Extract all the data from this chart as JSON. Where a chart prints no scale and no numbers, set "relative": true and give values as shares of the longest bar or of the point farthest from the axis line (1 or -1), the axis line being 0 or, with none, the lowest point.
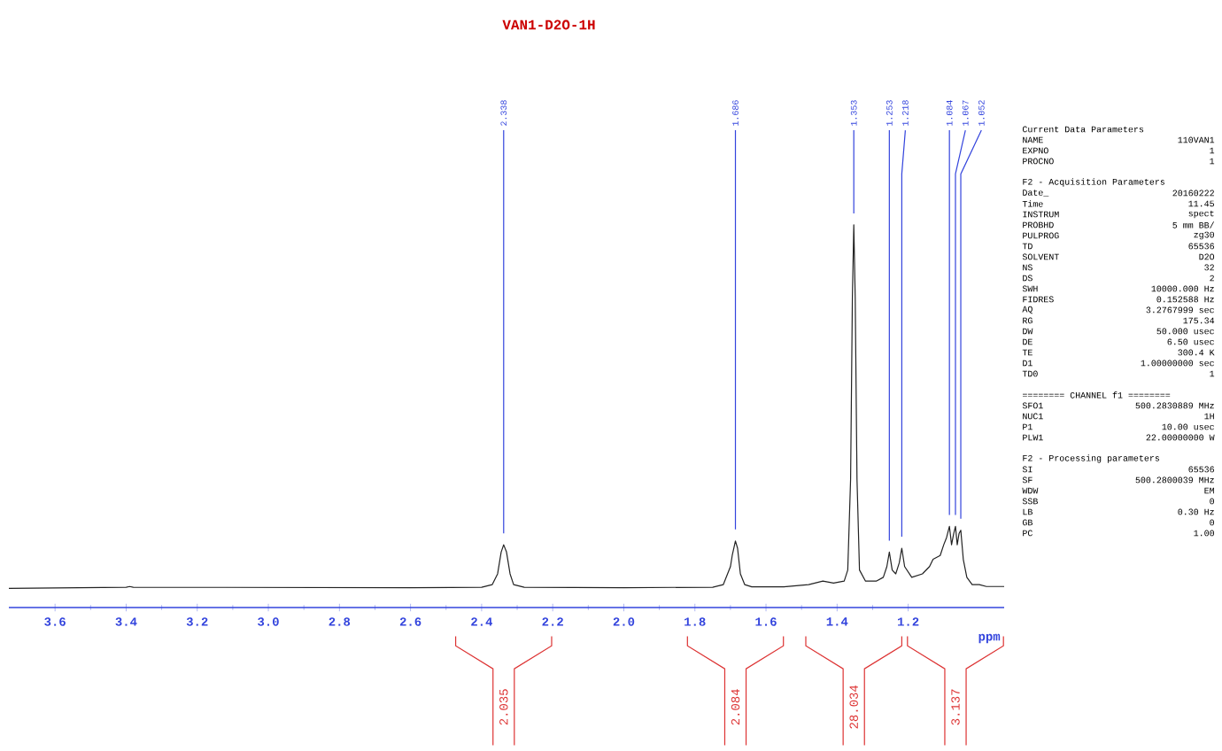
{
  "chart_data": {
    "type": "line",
    "title": "VAN1-D2O-1H",
    "xlabel": "ppm",
    "relative": true,
    "color": "#222222",
    "xlim": [
      3.73,
      0.93
    ],
    "xticks": [
      3.6,
      3.4,
      3.2,
      {
        "value": 3.0,
        "label": "3.0"
      },
      2.8,
      2.6,
      2.4,
      2.2,
      {
        "value": 2.0,
        "label": "2.0"
      },
      1.8,
      1.6,
      1.4,
      1.2
    ],
    "x": [
      3.73,
      3.4,
      3.39,
      3.38,
      2.6,
      2.4,
      2.37,
      2.355,
      2.345,
      2.338,
      2.33,
      2.32,
      2.31,
      2.28,
      2.0,
      1.75,
      1.72,
      1.7,
      1.695,
      1.686,
      1.68,
      1.672,
      1.66,
      1.64,
      1.55,
      1.48,
      1.44,
      1.41,
      1.38,
      1.37,
      1.362,
      1.357,
      1.353,
      1.349,
      1.344,
      1.337,
      1.32,
      1.29,
      1.27,
      1.26,
      1.253,
      1.245,
      1.235,
      1.225,
      1.218,
      1.21,
      1.19,
      1.16,
      1.14,
      1.13,
      1.11,
      1.1,
      1.092,
      1.084,
      1.078,
      1.072,
      1.067,
      1.062,
      1.057,
      1.052,
      1.045,
      1.035,
      1.02,
      1.0,
      0.98,
      0.93
    ],
    "values": [
      0.05,
      0.053,
      0.055,
      0.053,
      0.052,
      0.053,
      0.06,
      0.088,
      0.145,
      0.164,
      0.145,
      0.088,
      0.06,
      0.053,
      0.052,
      0.053,
      0.06,
      0.107,
      0.136,
      0.174,
      0.155,
      0.088,
      0.06,
      0.054,
      0.054,
      0.06,
      0.069,
      0.064,
      0.069,
      0.098,
      0.335,
      0.81,
      1,
      0.81,
      0.335,
      0.098,
      0.069,
      0.069,
      0.079,
      0.107,
      0.145,
      0.098,
      0.088,
      0.117,
      0.155,
      0.107,
      0.079,
      0.088,
      0.107,
      0.126,
      0.136,
      0.164,
      0.183,
      0.212,
      0.164,
      0.193,
      0.212,
      0.164,
      0.193,
      0.202,
      0.126,
      0.079,
      0.06,
      0.06,
      0.055,
      0.055
    ],
    "annotations": [
      "2.035",
      "2.084",
      "28.034",
      "3.137",
      {
        "text": "2.338",
        "x": 2.338,
        "y": 0.164
      },
      {
        "text": "1.686",
        "x": 1.686,
        "y": 0.174
      },
      {
        "text": "1.353",
        "x": 1.353,
        "y": 1
      },
      {
        "text": "1.253",
        "x": 1.253,
        "y": 0.145
      },
      {
        "text": "1.218",
        "x": 1.218,
        "y": 0.155
      },
      {
        "text": "1.084",
        "x": 1.084,
        "y": 0.212
      },
      {
        "text": "1.067",
        "x": 1.067,
        "y": 0.212
      },
      {
        "text": "1.052",
        "x": 1.052,
        "y": 0.202
      },
      "Current Data Parameters",
      "NAME",
      "110VAN1",
      "EXPNO",
      "1",
      "PROCNO",
      "1",
      "F2 - Acquisition Parameters",
      "Date_",
      "20160222",
      "Time",
      "11.45",
      "INSTRUM",
      "spect",
      "PROBHD",
      "5 mm BB/",
      "PULPROG",
      "zg30",
      "TD",
      "65536",
      "SOLVENT",
      "D2O",
      "NS",
      "32",
      "DS",
      "2",
      "SWH",
      "10000.000 Hz",
      "FIDRES",
      "0.152588 Hz",
      "AQ",
      "3.2767999 sec",
      "RG",
      "175.34",
      "DW",
      "50.000 usec",
      "DE",
      "6.50 usec",
      "TE",
      "300.4 K",
      "D1",
      "1.00000000 sec",
      "TD0",
      "1",
      "======== CHANNEL f1 ========",
      "SFO1",
      "500.2830889 MHz",
      "NUC1",
      "1H",
      "P1",
      "10.00 usec",
      "PLW1",
      "22.00000000 W",
      "F2 - Processing parameters",
      "SI",
      "65536",
      "SF",
      "500.2800039 MHz",
      "WDW",
      "EM",
      "SSB",
      "0",
      "LB",
      "0.30 Hz",
      "GB",
      "0",
      "PC",
      "1.00"
    ]
  }
}
